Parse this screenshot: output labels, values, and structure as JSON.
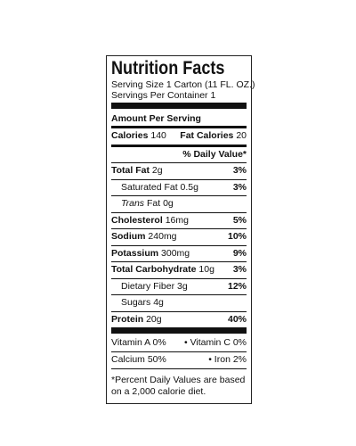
{
  "title": "Nutrition Facts",
  "serving_size": "Serving Size 1 Carton (11 FL. OZ.)",
  "servings_per_container": "Servings Per Container 1",
  "amount_per_serving": "Amount Per Serving",
  "calories": {
    "label": "Calories",
    "amount": "140"
  },
  "fat_calories": {
    "label": "Fat Calories",
    "amount": "20"
  },
  "daily_value_header": "% Daily Value*",
  "nutrients": [
    {
      "name": "Total Fat",
      "amount": "2g",
      "dv": "3%"
    },
    {
      "name": "Saturated Fat",
      "amount": "0.5g",
      "dv": "3%",
      "sub": true
    },
    {
      "name": "Trans",
      "amount": "Fat 0g",
      "sub": true,
      "italic": true
    },
    {
      "name": "Cholesterol",
      "amount": "16mg",
      "dv": "5%"
    },
    {
      "name": "Sodium",
      "amount": "240mg",
      "dv": "10%"
    },
    {
      "name": "Potassium",
      "amount": "300mg",
      "dv": "9%"
    },
    {
      "name": "Total Carbohydrate",
      "amount": "10g",
      "dv": "3%"
    },
    {
      "name": "Dietary Fiber",
      "amount": "3g",
      "dv": "12%",
      "sub": true
    },
    {
      "name": "Sugars",
      "amount": "4g",
      "sub": true
    },
    {
      "name": "Protein",
      "amount": "20g",
      "dv": "40%"
    }
  ],
  "vitamins": [
    [
      "Vitamin A 0%",
      "• Vitamin C 0%"
    ],
    [
      "Calcium 50%",
      "• Iron 2%"
    ]
  ],
  "footnote": "*Percent Daily Values are based on a 2,000 calorie diet."
}
